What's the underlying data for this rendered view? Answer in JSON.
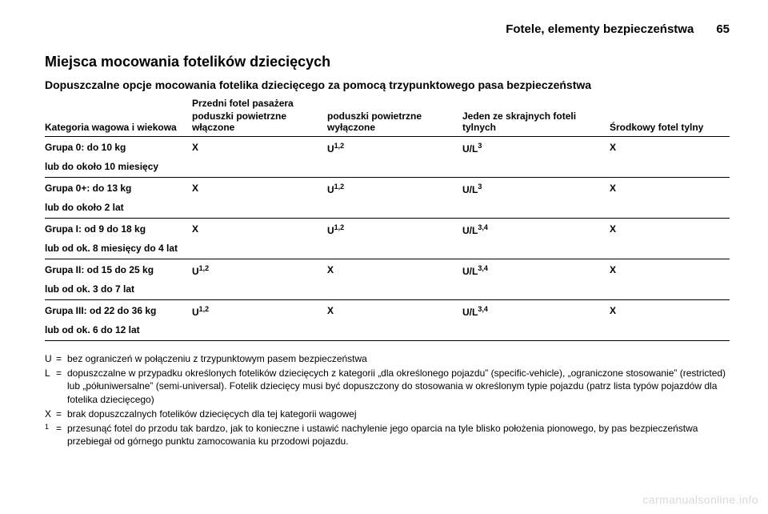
{
  "header": {
    "chapter": "Fotele, elementy bezpieczeństwa",
    "page_number": "65"
  },
  "section": {
    "title": "Miejsca mocowania fotelików dziecięcych",
    "subtitle": "Dopuszczalne opcje mocowania fotelika dziecięcego za pomocą trzypunktowego pasa bezpieczeństwa"
  },
  "table": {
    "col_cat": "Kategoria wagowa i wiekowa",
    "group_header": "Przedni fotel pasażera",
    "col_a": "poduszki powietrzne włączone",
    "col_b": "poduszki powietrzne wyłączone",
    "col_c": "Jeden ze skrajnych foteli tylnych",
    "col_d": "Środkowy fotel tylny",
    "rows": [
      {
        "line1": "Grupa 0: do 10 kg",
        "line2": "lub do około 10 miesięcy",
        "a": "X",
        "b": "U",
        "b_sup": "1,2",
        "c": "U/L",
        "c_sup": "3",
        "d": "X"
      },
      {
        "line1": "Grupa 0+: do 13 kg",
        "line2": "lub do około 2 lat",
        "a": "X",
        "b": "U",
        "b_sup": "1,2",
        "c": "U/L",
        "c_sup": "3",
        "d": "X"
      },
      {
        "line1": "Grupa I: od 9 do 18 kg",
        "line2": "lub od ok. 8 miesięcy do 4 lat",
        "a": "X",
        "b": "U",
        "b_sup": "1,2",
        "c": "U/L",
        "c_sup": "3,4",
        "d": "X"
      },
      {
        "line1": "Grupa II: od 15 do 25 kg",
        "line2": "lub od ok. 3 do 7 lat",
        "a": "U",
        "a_sup": "1,2",
        "b": "X",
        "c": "U/L",
        "c_sup": "3,4",
        "d": "X"
      },
      {
        "line1": "Grupa III: od 22 do 36 kg",
        "line2": "lub od ok. 6 do 12 lat",
        "a": "U",
        "a_sup": "1,2",
        "b": "X",
        "c": "U/L",
        "c_sup": "3,4",
        "d": "X"
      }
    ]
  },
  "legend": [
    {
      "key": "U",
      "eq": "=",
      "text": "bez ograniczeń w połączeniu z trzypunktowym pasem bezpieczeństwa"
    },
    {
      "key": "L",
      "eq": "=",
      "text": "dopuszczalne w przypadku określonych fotelików dziecięcych z kategorii „dla określonego pojazdu” (specific-vehicle), „ograniczone stosowanie” (restricted) lub „półuniwersalne” (semi-universal). Fotelik dziecięcy musi być dopuszczony do stosowania w określonym typie pojazdu (patrz lista typów pojazdów dla fotelika dziecięcego)"
    },
    {
      "key": "X",
      "eq": "=",
      "text": "brak dopuszczalnych fotelików dziecięcych dla tej kategorii wagowej"
    },
    {
      "key": "1",
      "eq": "=",
      "text": "przesunąć fotel do przodu tak bardzo, jak to konieczne i ustawić nachylenie jego oparcia na tyle blisko położenia pionowego, by pas bezpieczeństwa przebiegał od górnego punktu zamocowania ku przodowi pojazdu."
    }
  ],
  "watermark": "carmanualsonline.info"
}
